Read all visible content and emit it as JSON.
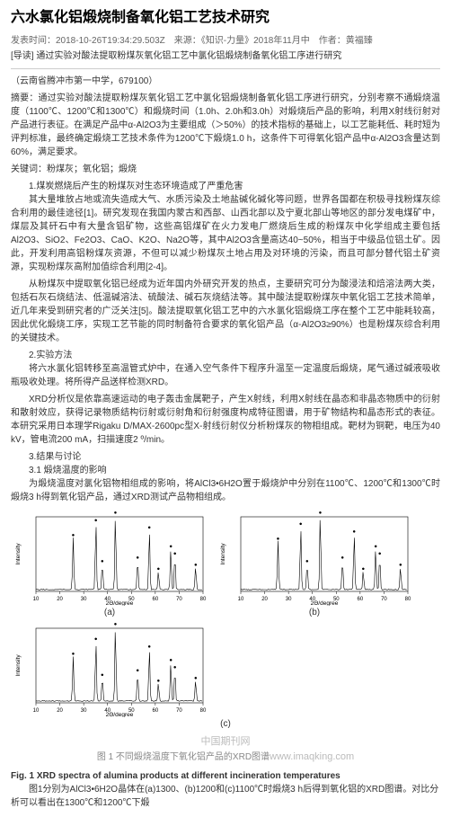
{
  "title": "六水氯化铝煅烧制备氧化铝工艺技术研究",
  "meta_line": "发表时间：2018-10-26T19:34:29.503Z　来源：《知识-力量》2018年11月中　作者：黄福臻",
  "lead": "[导读] 通过实验对酸法提取粉煤灰氧化铝工艺中氯化铝煅烧制备氧化铝工序进行研究",
  "affiliation": "（云南省腾冲市第一中学，679100）",
  "abstract_label": "摘要：",
  "abstract_body": "通过实验对酸法提取粉煤灰氧化铝工艺中氯化铝煅烧制备氧化铝工序进行研究，分别考察不通煅烧温度（1100℃、1200℃和1300℃）和煅烧时间（1.0h、2.0h和3.0h）对煅烧后产品的影响，利用X射线衍射对产品进行表征。在满足产品中α-Al2O3为主要组成（＞50%）的技术指标的基础上，以工艺能耗低、耗时短为评判标准，最终确定煅烧工艺技术条件为1200℃下煅烧1.0 h，这条件下可得氧化铝产品中α-Al2O3含量达到60%，满足要求。",
  "keywords_label": "关键词：",
  "keywords_body": "粉煤灰；氧化铝；煅烧",
  "s1_head": "1.煤炭燃烧后产生的粉煤灰对生态环境造成了严重危害",
  "s1_body": "其大量堆放占地或流失造成大气、水质污染及土地盐碱化碱化等问题，世界各国都在积极寻找粉煤灰综合利用的最佳途径[1]。研究发现在我国内蒙古和西部、山西北部以及宁夏北部山等地区的部分发电煤矿中，煤层及其矸石中有大量含铝矿物，这些高铝煤矿在火力发电厂燃烧后生成的粉煤灰中化学组成主要包括Al2O3、SiO2、Fe2O3、CaO、K2O、Na2O等，其中Al2O3含量高达40~50%，相当于中级品位铝土矿。因此，开发利用高铝粉煤灰资源，不但可以减少粉煤灰土地占用及对环境的污染，而且可部分替代铝土矿资源，实现粉煤灰高附加值综合利用[2-4]。",
  "s1_body2": "从粉煤灰中提取氧化铝已经成为近年国内外研究开发的热点，主要研究可分为酸浸法和焙溶法两大类，包括石灰石烧结法、低温碱溶法、硫酸法、碱石灰烧结法等。其中酸法提取粉煤灰中氧化铝工艺技术简单，近几年来受到研究者的广泛关注[5]。酸法提取氧化铝工艺中的六水氯化铝煅烧工序在整个工艺中能耗较高，因此优化煅烧工序，实现工艺节能的同时制备符合要求的氧化铝产品（α-Al2O3≥90%）也是粉煤灰综合利用的关键技术。",
  "s2_head": "2.实验方法",
  "s2_body": "将六水氯化铝转移至高温管式炉中，在通入空气条件下程序升温至一定温度后煅烧，尾气通过碱液吸收瓶吸收处理。将所得产品送样检测XRD。",
  "s2_body2": "XRD分析仪是依靠高速运动的电子轰击金属靶子，产生X射线，利用X射线在晶态和非晶态物质中的衍射和散射效应，获得记录物质结构衍射或衍射角和衍射强度构成特征图谱，用于矿物结构和晶态形式的表征。本研究采用日本理学Rigaku D/MAX-2600pc型X-射线衍射仪分析粉煤灰的物相组成。靶材为铜靶，电压为40 kV，管电流200 mA，扫描速度2 º/min。",
  "s3_head": "3.结果与讨论",
  "s31_head": "3.1 煅烧温度的影响",
  "s31_body": "为煅烧温度对氯化铝物相组成的影响，将AlCl3•6H2O置于煅烧炉中分别在1100℃、1200℃和1300℃时煅烧3 h得到氧化铝产品，通过XRD测试产品物相组成。",
  "chart_a": {
    "type": "xrd",
    "label": "(a)",
    "x_axis": "2Θ/degree",
    "y_axis": "Intensity",
    "background": "#ffffff",
    "line_color": "#000000",
    "line_width": 0.6,
    "peaks_2theta": [
      25.6,
      35.1,
      37.8,
      43.3,
      52.6,
      57.5,
      61.3,
      66.5,
      68.2,
      76.9
    ],
    "peak_heights": [
      70,
      90,
      35,
      100,
      40,
      80,
      25,
      55,
      45,
      30
    ],
    "xlim": [
      10,
      80
    ],
    "marker": "●"
  },
  "chart_b": {
    "type": "xrd",
    "label": "(b)",
    "x_axis": "2Θ/degree",
    "y_axis": "Intensity",
    "background": "#ffffff",
    "line_color": "#000000",
    "line_width": 0.6,
    "peaks_2theta": [
      25.6,
      35.1,
      37.8,
      43.3,
      52.6,
      57.5,
      61.3,
      66.5,
      68.2,
      76.9
    ],
    "peak_heights": [
      65,
      85,
      35,
      100,
      40,
      75,
      25,
      55,
      45,
      30
    ],
    "xlim": [
      10,
      80
    ],
    "marker": "●"
  },
  "chart_c": {
    "type": "xrd",
    "label": "(c)",
    "x_axis": "2Θ/degree",
    "y_axis": "Intensity",
    "background": "#ffffff",
    "line_color": "#000000",
    "line_width": 0.6,
    "peaks_2theta": [
      25.6,
      35.1,
      37.8,
      43.3,
      52.6,
      57.5,
      61.3,
      66.5,
      68.2,
      76.9
    ],
    "peak_heights": [
      60,
      80,
      32,
      100,
      38,
      70,
      24,
      52,
      42,
      28
    ],
    "xlim": [
      10,
      80
    ],
    "marker": "●"
  },
  "figcap_cn_pre": "图 1  不同煅烧温度下氧化铝产品的XRD图谱",
  "watermark1": "中国期刊网",
  "watermark2": "www.imaqking.com",
  "figcap_en": "Fig. 1 XRD spectra of alumina products at different incineration temperatures",
  "trailing": "图1分别为AlCl3•6H2O晶体在(a)1300、(b)1200和(c)1100℃时煅烧3 h后得到氧化铝的XRD图谱。对比分析可以看出在1300℃和1200℃下煅"
}
